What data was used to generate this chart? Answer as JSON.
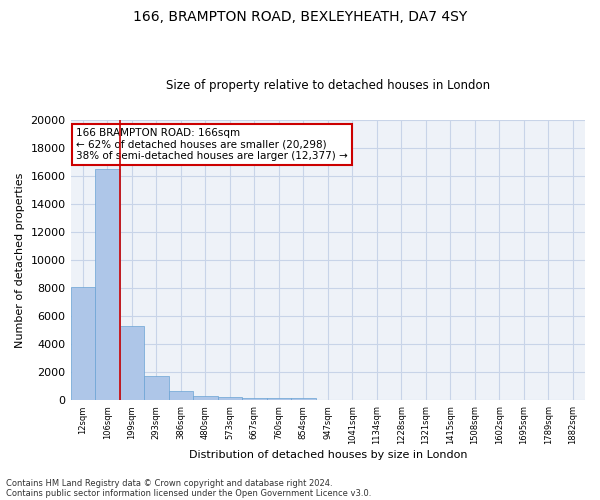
{
  "title1": "166, BRAMPTON ROAD, BEXLEYHEATH, DA7 4SY",
  "title2": "Size of property relative to detached houses in London",
  "xlabel": "Distribution of detached houses by size in London",
  "ylabel": "Number of detached properties",
  "categories": [
    "12sqm",
    "106sqm",
    "199sqm",
    "293sqm",
    "386sqm",
    "480sqm",
    "573sqm",
    "667sqm",
    "760sqm",
    "854sqm",
    "947sqm",
    "1041sqm",
    "1134sqm",
    "1228sqm",
    "1321sqm",
    "1415sqm",
    "1508sqm",
    "1602sqm",
    "1695sqm",
    "1789sqm",
    "1882sqm"
  ],
  "values": [
    8100,
    16500,
    5300,
    1750,
    650,
    350,
    260,
    200,
    170,
    150,
    0,
    0,
    0,
    0,
    0,
    0,
    0,
    0,
    0,
    0,
    0
  ],
  "bar_color": "#aec6e8",
  "bar_edge_color": "#6aa3d4",
  "grid_color": "#c8d4e8",
  "vline_x": 1.5,
  "vline_color": "#cc0000",
  "annotation_text": "166 BRAMPTON ROAD: 166sqm\n← 62% of detached houses are smaller (20,298)\n38% of semi-detached houses are larger (12,377) →",
  "annotation_box_color": "#ffffff",
  "annotation_box_edge": "#cc0000",
  "ylim": [
    0,
    20000
  ],
  "yticks": [
    0,
    2000,
    4000,
    6000,
    8000,
    10000,
    12000,
    14000,
    16000,
    18000,
    20000
  ],
  "footer1": "Contains HM Land Registry data © Crown copyright and database right 2024.",
  "footer2": "Contains public sector information licensed under the Open Government Licence v3.0.",
  "bg_color": "#eef2f8"
}
